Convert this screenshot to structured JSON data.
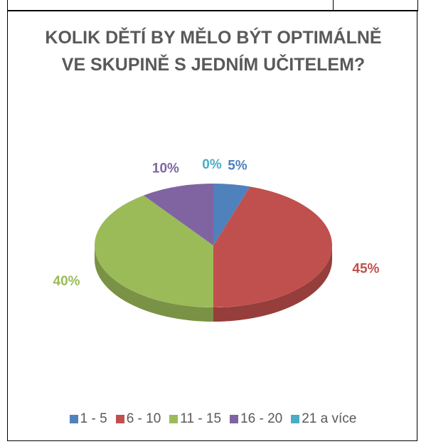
{
  "chart_data": {
    "type": "pie",
    "title": "KOLIK DĚTÍ BY MĚLO BÝT OPTIMÁLNĚ VE SKUPINĚ S JEDNÍM UČITELEM?",
    "categories": [
      "1 - 5",
      "6 - 10",
      "11 - 15",
      "16 - 20",
      "21 a více"
    ],
    "values": [
      5,
      45,
      40,
      10,
      0
    ],
    "value_labels": [
      "5%",
      "45%",
      "40%",
      "10%",
      "0%"
    ],
    "colors": [
      "#4f81bd",
      "#c0504d",
      "#9bbb59",
      "#8064a2",
      "#4bacc6"
    ],
    "legend": "bottom"
  }
}
